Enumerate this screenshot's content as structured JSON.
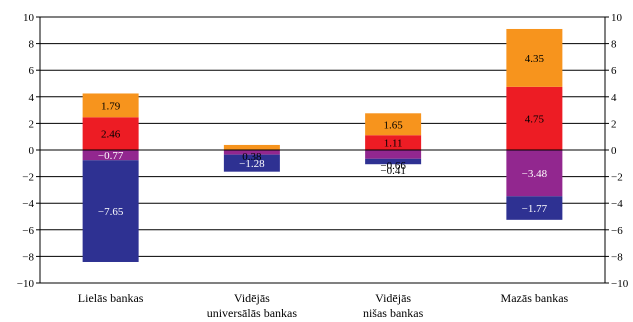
{
  "chart_data": {
    "type": "bar",
    "stacked": true,
    "categories": [
      [
        "Lielās bankas"
      ],
      [
        "Vidējās",
        "universālās bankas"
      ],
      [
        "Vidējās",
        "nišas bankas"
      ],
      [
        "Mazās bankas"
      ]
    ],
    "ylim": [
      -10,
      10
    ],
    "yticks": [
      "−10",
      "−8",
      "−6",
      "−4",
      "−2",
      "0",
      "2",
      "4",
      "6",
      "8",
      "10"
    ],
    "right_yticks": [
      "−10",
      "−8",
      "−6",
      "−4",
      "−2",
      "0",
      "2",
      "4",
      "6",
      "8",
      "10"
    ],
    "grid": true,
    "series": [
      {
        "color": "#ed1c24",
        "label_color": "#000000",
        "values": [
          2.46,
          null,
          1.11,
          4.75
        ],
        "labels": [
          "2.46",
          "",
          "1.11",
          "4.75"
        ]
      },
      {
        "color": "#f7941d",
        "label_color": "#000000",
        "values": [
          1.79,
          0.38,
          1.65,
          4.35
        ],
        "labels": [
          "1.79",
          "0.38",
          "1.65",
          "4.35"
        ]
      },
      {
        "color": "#92278f",
        "label_color": "#ffffff",
        "values": [
          -0.77,
          -0.35,
          -0.66,
          -3.48
        ],
        "labels": [
          "−0.77",
          "",
          "−0.66",
          "−3.48"
        ]
      },
      {
        "color": "#2e3192",
        "label_color": "#ffffff",
        "values": [
          -7.65,
          -1.28,
          -0.41,
          -1.77
        ],
        "labels": [
          "−7.65",
          "−1.28",
          "−0.41",
          "−1.77"
        ]
      }
    ]
  }
}
